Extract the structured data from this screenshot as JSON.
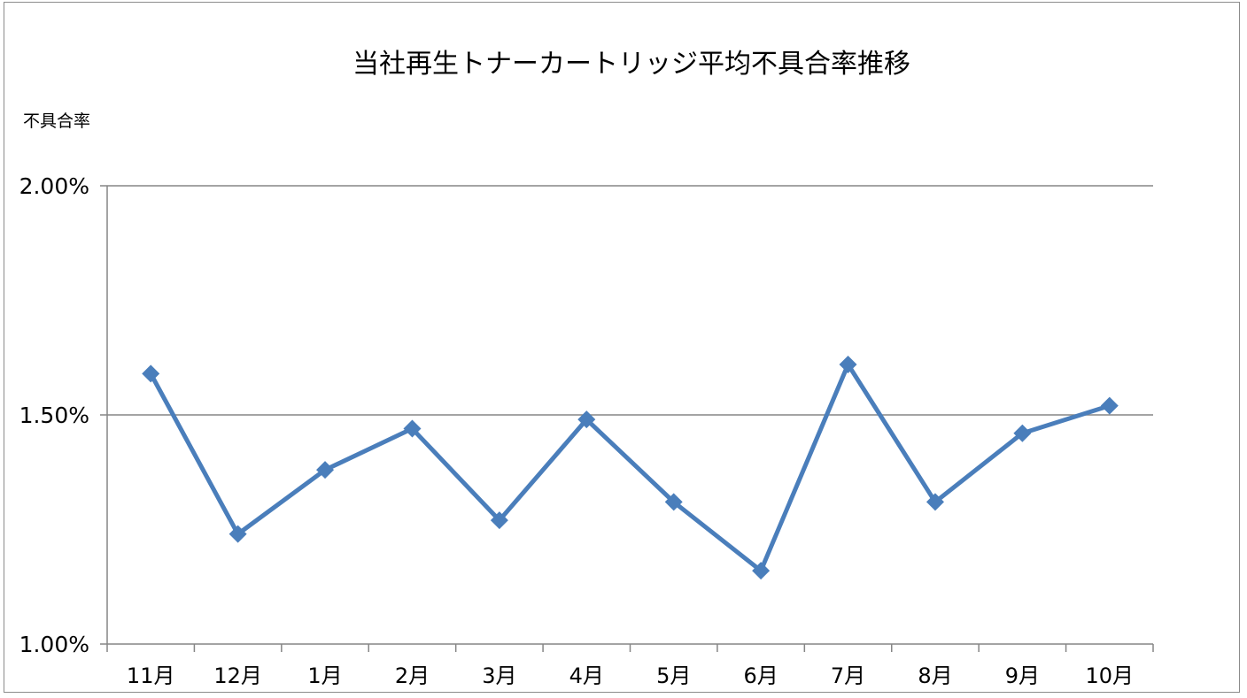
{
  "chart_data": {
    "type": "line",
    "title": "当社再生トナーカートリッジ平均不具合率推移",
    "ylabel": "不具合率",
    "xlabel": "",
    "categories": [
      "11月",
      "12月",
      "1月",
      "2月",
      "3月",
      "4月",
      "5月",
      "6月",
      "7月",
      "8月",
      "9月",
      "10月"
    ],
    "series": [
      {
        "values": [
          1.59,
          1.24,
          1.38,
          1.47,
          1.27,
          1.49,
          1.31,
          1.16,
          1.61,
          1.31,
          1.46,
          1.52
        ],
        "color": "#4a7ebb",
        "marker": "diamond"
      }
    ],
    "ylim": [
      1.0,
      2.0
    ],
    "yticks": [
      1.0,
      1.5,
      2.0
    ],
    "ytick_labels": [
      "1.00%",
      "1.50%",
      "2.00%"
    ],
    "grid": true,
    "legend": "none"
  }
}
